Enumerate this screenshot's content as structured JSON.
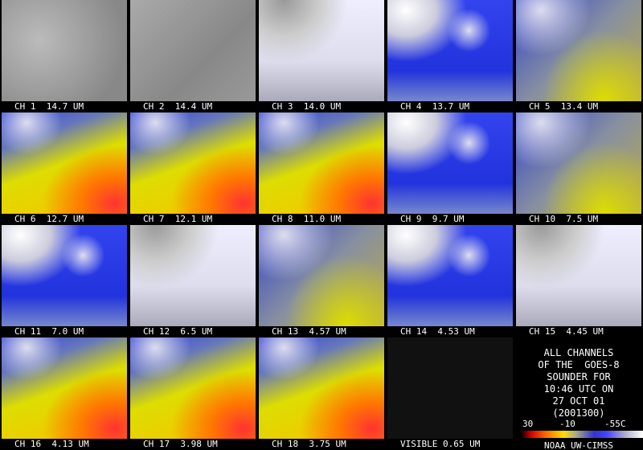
{
  "panels": [
    {
      "label": "CH 1  14.7 UM"
    },
    {
      "label": "CH 2  14.4 UM"
    },
    {
      "label": "CH 3  14.0 UM"
    },
    {
      "label": "CH 4  13.7 UM"
    },
    {
      "label": "CH 5  13.4 UM"
    },
    {
      "label": "CH 6  12.7 UM"
    },
    {
      "label": "CH 7  12.1 UM"
    },
    {
      "label": "CH 8  11.0 UM"
    },
    {
      "label": "CH 9  9.7 UM"
    },
    {
      "label": "CH 10  7.5 UM"
    },
    {
      "label": "CH 11  7.0 UM"
    },
    {
      "label": "CH 12  6.5 UM"
    },
    {
      "label": "CH 13  4.57 UM"
    },
    {
      "label": "CH 14  4.53 UM"
    },
    {
      "label": "CH 15  4.45 UM"
    },
    {
      "label": "CH 16  4.13 UM"
    },
    {
      "label": "CH 17  3.98 UM"
    },
    {
      "label": "CH 18  3.75 UM"
    },
    {
      "label": "VISIBLE 0.65 UM"
    }
  ],
  "info": {
    "lines": [
      "ALL CHANNELS",
      "OF THE  GOES-8",
      "SOUNDER FOR",
      "10:46 UTC ON",
      "27 OCT 01",
      "(2001300)"
    ],
    "scale_labels": [
      "30",
      "-10",
      "-55C"
    ],
    "credit": "NOAA UW-CIMSS"
  }
}
